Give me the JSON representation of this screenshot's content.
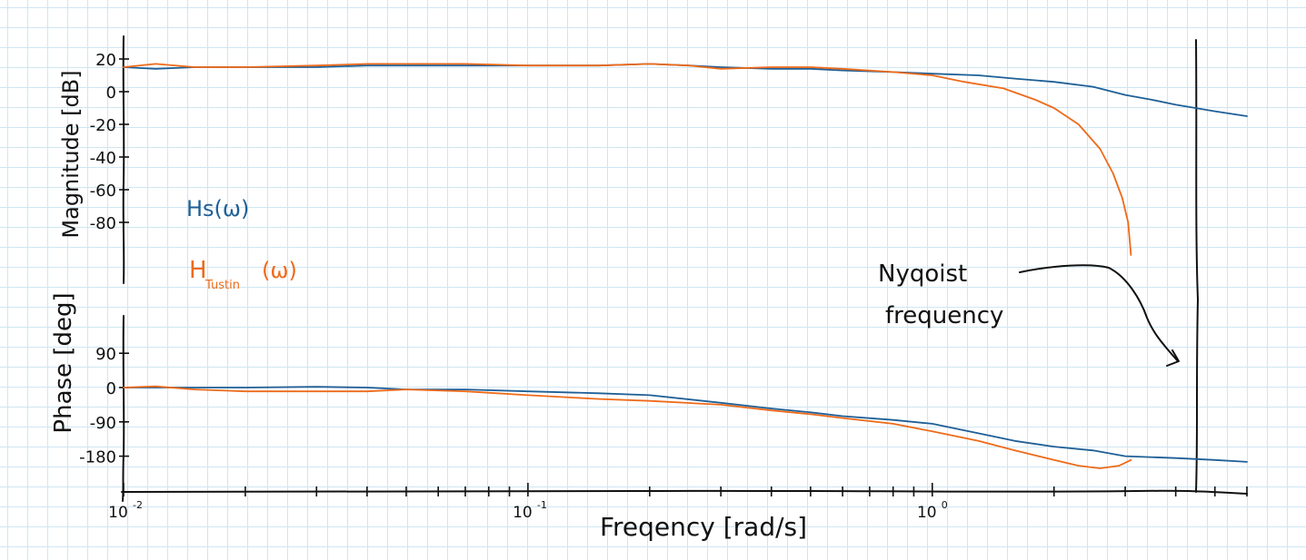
{
  "colors": {
    "hs": "#1f5f96",
    "tustin": "#ee6a1a",
    "ink": "#111111"
  },
  "labels": {
    "magnitude_axis": "Magnitude [dB]",
    "phase_axis": "Phase [deg]",
    "x_axis": "Freqency [rad/s]",
    "legend_hs": "Hs(ω)",
    "legend_tustin_main": "H",
    "legend_tustin_sub": "Tustin",
    "legend_tustin_tail": "(ω)",
    "nyquist_line1": "Nyqoist",
    "nyquist_line2": "frequency"
  },
  "chart_data": [
    {
      "type": "line",
      "panel": "magnitude",
      "xlabel": "Freqency [rad/s]",
      "ylabel": "Magnitude [dB]",
      "xscale": "log",
      "xlim": [
        0.01,
        6
      ],
      "ylim": [
        -110,
        30
      ],
      "xticklabels": [
        "10^-2",
        "10^-1",
        "10^0"
      ],
      "xtick_values": [
        0.01,
        0.1,
        1
      ],
      "yticklabels": [
        "20",
        "0",
        "-20",
        "-40",
        "-60",
        "-80"
      ],
      "ytick_values": [
        20,
        0,
        -20,
        -40,
        -60,
        -80
      ],
      "legend_placement": "left",
      "annotation": {
        "text": "Nyqoist frequency",
        "x": 3.1
      },
      "series": [
        {
          "name": "Hs(ω)",
          "color": "#1f5f96",
          "x": [
            0.01,
            0.012,
            0.015,
            0.02,
            0.03,
            0.04,
            0.05,
            0.07,
            0.1,
            0.15,
            0.2,
            0.25,
            0.3,
            0.4,
            0.5,
            0.6,
            0.8,
            1.0,
            1.3,
            1.6,
            2.0,
            2.5,
            3.0,
            3.5,
            4.0,
            5.0,
            6.0
          ],
          "y": [
            15,
            14,
            15,
            15,
            15,
            16,
            16,
            16,
            16,
            16,
            17,
            16,
            15,
            14,
            14,
            13,
            12,
            11,
            10,
            8,
            6,
            3,
            -2,
            -5,
            -8,
            -12,
            -15
          ]
        },
        {
          "name": "H_Tustin(ω)",
          "color": "#ee6a1a",
          "x": [
            0.01,
            0.012,
            0.015,
            0.02,
            0.03,
            0.04,
            0.05,
            0.07,
            0.1,
            0.15,
            0.2,
            0.25,
            0.3,
            0.4,
            0.5,
            0.6,
            0.8,
            1.0,
            1.2,
            1.5,
            1.8,
            2.0,
            2.3,
            2.6,
            2.8,
            2.95,
            3.05,
            3.1
          ],
          "y": [
            15,
            17,
            15,
            15,
            16,
            17,
            17,
            17,
            16,
            16,
            17,
            16,
            14,
            15,
            15,
            14,
            12,
            10,
            6,
            2,
            -5,
            -10,
            -20,
            -35,
            -50,
            -65,
            -80,
            -100
          ]
        }
      ]
    },
    {
      "type": "line",
      "panel": "phase",
      "xlabel": "Freqency [rad/s]",
      "ylabel": "Phase [deg]",
      "xscale": "log",
      "xlim": [
        0.01,
        6
      ],
      "ylim": [
        -250,
        170
      ],
      "xticklabels": [
        "10^-2",
        "10^-1",
        "10^0"
      ],
      "xtick_values": [
        0.01,
        0.1,
        1
      ],
      "yticklabels": [
        "90",
        "0",
        "-90",
        "-180"
      ],
      "ytick_values": [
        90,
        0,
        -90,
        -180
      ],
      "series": [
        {
          "name": "Hs(ω)",
          "color": "#1f5f96",
          "x": [
            0.01,
            0.012,
            0.015,
            0.02,
            0.03,
            0.04,
            0.05,
            0.07,
            0.1,
            0.15,
            0.2,
            0.3,
            0.4,
            0.5,
            0.6,
            0.8,
            1.0,
            1.3,
            1.6,
            2.0,
            2.5,
            3.0,
            4.0,
            5.0,
            6.0
          ],
          "y": [
            0,
            0,
            0,
            0,
            2,
            0,
            -5,
            -5,
            -10,
            -15,
            -20,
            -40,
            -55,
            -65,
            -75,
            -85,
            -95,
            -120,
            -140,
            -155,
            -165,
            -180,
            -185,
            -190,
            -195
          ]
        },
        {
          "name": "H_Tustin(ω)",
          "color": "#ee6a1a",
          "x": [
            0.01,
            0.012,
            0.015,
            0.02,
            0.03,
            0.04,
            0.05,
            0.07,
            0.1,
            0.15,
            0.2,
            0.3,
            0.4,
            0.5,
            0.6,
            0.8,
            1.0,
            1.3,
            1.6,
            2.0,
            2.3,
            2.6,
            2.9,
            3.1
          ],
          "y": [
            0,
            3,
            -5,
            -10,
            -10,
            -10,
            -5,
            -10,
            -20,
            -30,
            -35,
            -45,
            -60,
            -70,
            -80,
            -95,
            -115,
            -140,
            -165,
            -190,
            -205,
            -212,
            -205,
            -190
          ]
        }
      ]
    }
  ]
}
